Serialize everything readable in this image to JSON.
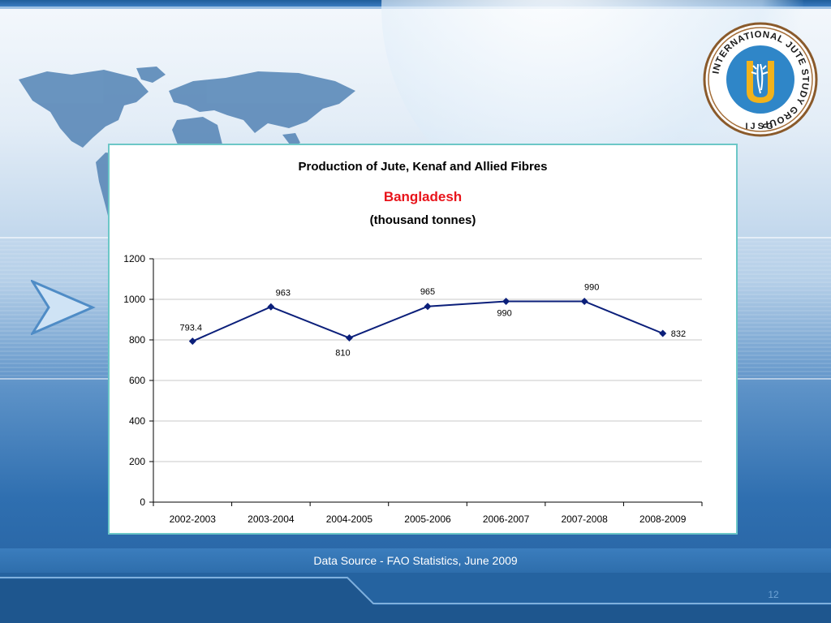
{
  "slide": {
    "data_source": "Data Source - FAO Statistics, June 2009",
    "page_number": "12"
  },
  "logo": {
    "ring_text": "INTERNATIONAL JUTE STUDY GROUP",
    "abbr": "IJSG"
  },
  "colors": {
    "line": "#0b1f7a",
    "subtitle": "#e8141b",
    "panel_border": "#6cc7c7",
    "grid": "#c8c8c8"
  },
  "chart_data": {
    "type": "line",
    "title": "Production of Jute, Kenaf and Allied Fibres",
    "subtitle": "Bangladesh",
    "unit_label": "(thousand tonnes)",
    "categories": [
      "2002-2003",
      "2003-2004",
      "2004-2005",
      "2005-2006",
      "2006-2007",
      "2007-2008",
      "2008-2009"
    ],
    "series": [
      {
        "values": [
          793.4,
          963,
          810,
          965,
          990,
          990,
          832
        ],
        "data_labels": [
          "793.4",
          "963",
          "810",
          "965",
          "990",
          "990",
          "832"
        ]
      }
    ],
    "ylim": [
      0,
      1200
    ],
    "yticks": [
      0,
      200,
      400,
      600,
      800,
      1000,
      1200
    ],
    "grid": true,
    "marker": "diamond",
    "legend": "none"
  }
}
